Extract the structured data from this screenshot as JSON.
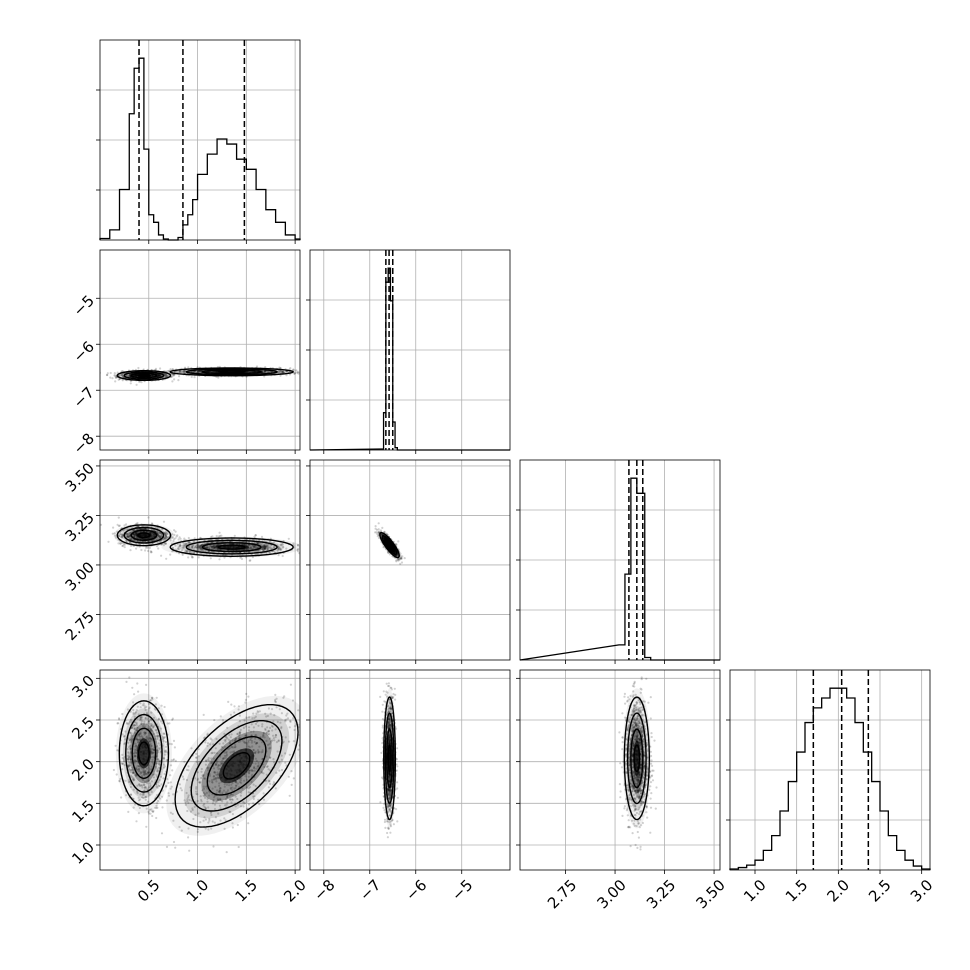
{
  "chart_data": {
    "type": "corner",
    "title": "",
    "grid": true,
    "parameters": [
      {
        "name": "",
        "range": [
          0.0,
          2.05
        ],
        "ticks": [
          0.5,
          1.0,
          1.5,
          2.0
        ],
        "tick_labels": [
          "0.5",
          "1.0",
          "1.5",
          "2.0"
        ],
        "quantiles": [
          0.4,
          0.85,
          1.48
        ]
      },
      {
        "name": "",
        "range": [
          -8.3,
          -3.95
        ],
        "ticks": [
          -8,
          -7,
          -6,
          -5
        ],
        "tick_labels": [
          "−8",
          "−7",
          "−6",
          "−5"
        ],
        "quantiles": [
          -6.65,
          -6.58,
          -6.5
        ]
      },
      {
        "name": "",
        "range": [
          2.52,
          3.53
        ],
        "ticks": [
          2.75,
          3.0,
          3.25,
          3.5
        ],
        "tick_labels": [
          "2.75",
          "3.00",
          "3.25",
          "3.50"
        ],
        "quantiles": [
          3.07,
          3.11,
          3.14
        ]
      },
      {
        "name": "",
        "range": [
          0.7,
          3.1
        ],
        "ticks": [
          1.0,
          1.5,
          2.0,
          2.5,
          3.0
        ],
        "tick_labels": [
          "1.0",
          "1.5",
          "2.0",
          "2.5",
          "3.0"
        ],
        "quantiles": [
          1.7,
          2.04,
          2.36
        ]
      }
    ],
    "histograms": [
      {
        "param": 0,
        "bin_edges": [
          0.0,
          0.1,
          0.2,
          0.3,
          0.35,
          0.4,
          0.45,
          0.5,
          0.55,
          0.6,
          0.65,
          0.7,
          0.75,
          0.8,
          0.85,
          0.9,
          0.95,
          1.0,
          1.1,
          1.2,
          1.3,
          1.4,
          1.5,
          1.6,
          1.7,
          1.8,
          1.9,
          2.0,
          2.05
        ],
        "counts": [
          0.03,
          0.2,
          1.0,
          2.5,
          3.4,
          3.6,
          1.8,
          0.5,
          0.35,
          0.1,
          0.02,
          0.0,
          0.0,
          0.05,
          0.3,
          0.5,
          0.8,
          1.3,
          1.7,
          2.0,
          1.9,
          1.6,
          1.4,
          1.0,
          0.6,
          0.35,
          0.1,
          0.02
        ]
      },
      {
        "param": 1,
        "bin_edges": [
          -6.75,
          -6.7,
          -6.65,
          -6.6,
          -6.55,
          -6.5,
          -6.45,
          -6.4,
          -6.3
        ],
        "counts": [
          0.02,
          0.8,
          3.6,
          3.9,
          3.2,
          0.6,
          0.05,
          0.0
        ]
      },
      {
        "param": 2,
        "bin_edges": [
          3.02,
          3.05,
          3.08,
          3.11,
          3.15,
          3.18,
          3.21
        ],
        "counts": [
          0.3,
          1.7,
          3.6,
          3.3,
          0.05,
          0.0
        ]
      },
      {
        "param": 3,
        "bin_edges": [
          0.7,
          0.8,
          0.9,
          1.0,
          1.1,
          1.2,
          1.3,
          1.4,
          1.5,
          1.6,
          1.7,
          1.8,
          1.9,
          2.0,
          2.1,
          2.2,
          2.3,
          2.4,
          2.5,
          2.6,
          2.7,
          2.8,
          2.9,
          3.0,
          3.1
        ],
        "counts": [
          0.02,
          0.05,
          0.1,
          0.2,
          0.4,
          0.7,
          1.2,
          1.8,
          2.4,
          3.0,
          3.3,
          3.5,
          3.7,
          3.7,
          3.5,
          3.0,
          2.4,
          1.8,
          1.2,
          0.7,
          0.4,
          0.2,
          0.08,
          0.02
        ]
      }
    ],
    "joint_distributions": [
      {
        "x": 0,
        "y": 1,
        "modes": [
          {
            "cx": 0.45,
            "cy": -6.68,
            "sx": 0.13,
            "sy": 0.05,
            "rho": 0.0,
            "n": 800
          },
          {
            "cx": 1.35,
            "cy": -6.6,
            "sx": 0.3,
            "sy": 0.04,
            "rho": 0.0,
            "n": 900
          }
        ]
      },
      {
        "x": 0,
        "y": 2,
        "modes": [
          {
            "cx": 0.45,
            "cy": 3.15,
            "sx": 0.13,
            "sy": 0.025,
            "rho": 0.0,
            "n": 800
          },
          {
            "cx": 1.35,
            "cy": 3.09,
            "sx": 0.3,
            "sy": 0.022,
            "rho": 0.0,
            "n": 900
          }
        ]
      },
      {
        "x": 0,
        "y": 3,
        "modes": [
          {
            "cx": 0.45,
            "cy": 2.1,
            "sx": 0.12,
            "sy": 0.3,
            "rho": 0.0,
            "n": 800
          },
          {
            "cx": 1.4,
            "cy": 1.95,
            "sx": 0.3,
            "sy": 0.35,
            "rho": 0.55,
            "n": 900
          }
        ]
      },
      {
        "x": 1,
        "y": 2,
        "modes": [
          {
            "cx": -6.57,
            "cy": 3.1,
            "sx": 0.1,
            "sy": 0.03,
            "rho": -0.85,
            "n": 900
          }
        ]
      },
      {
        "x": 1,
        "y": 3,
        "modes": [
          {
            "cx": -6.57,
            "cy": 2.04,
            "sx": 0.06,
            "sy": 0.35,
            "rho": 0.0,
            "n": 1200
          }
        ]
      },
      {
        "x": 2,
        "y": 3,
        "modes": [
          {
            "cx": 3.11,
            "cy": 2.04,
            "sx": 0.03,
            "sy": 0.35,
            "rho": 0.0,
            "n": 1200
          }
        ]
      }
    ],
    "colors": {
      "line": "#000000",
      "grid": "#b0b0b0",
      "density": "#000000"
    }
  }
}
